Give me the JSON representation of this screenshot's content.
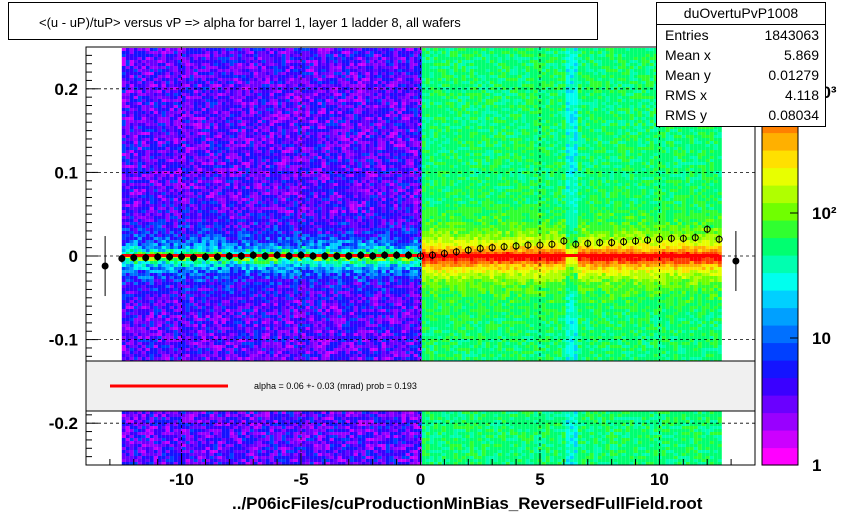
{
  "chart_data": {
    "type": "heatmap",
    "title": "<(u - uP)/tuP> versus   vP => alpha for barrel 1, layer 1 ladder 8, all wafers",
    "xlabel": "../P06icFiles/cuProductionMinBias_ReversedFullField.root",
    "ylabel": "",
    "xlim": [
      -14,
      14
    ],
    "ylim": [
      -0.25,
      0.25
    ],
    "x_ticks": [
      -10,
      -5,
      0,
      5,
      10
    ],
    "x_tick_labels": [
      "-10",
      "-5",
      "0",
      "5",
      "10"
    ],
    "y_ticks": [
      0.2,
      0.1,
      0,
      -0.1,
      -0.2
    ],
    "y_tick_labels": [
      "0.2",
      "0.1",
      "0",
      "-0.1",
      "-0.2"
    ],
    "grid": true,
    "z_scale": "log",
    "colorbar_tick_labels": [
      "1",
      "10",
      "10²",
      "10³"
    ],
    "profile_points": {
      "x": [
        -13.2,
        -12.5,
        -12.0,
        -11.5,
        -11.0,
        -10.5,
        -10.0,
        -9.5,
        -9.0,
        -8.5,
        -8.0,
        -7.5,
        -7.0,
        -6.5,
        -6.0,
        -5.5,
        -5.0,
        -4.5,
        -4.0,
        -3.5,
        -3.0,
        -2.5,
        -2.0,
        -1.5,
        -1.0,
        -0.5,
        0.0,
        0.5,
        1.0,
        1.5,
        2.0,
        2.5,
        3.0,
        3.5,
        4.0,
        4.5,
        5.0,
        5.5,
        6.0,
        6.5,
        7.0,
        7.5,
        8.0,
        8.5,
        9.0,
        9.5,
        10.0,
        10.5,
        11.0,
        11.5,
        12.0,
        12.5,
        13.2
      ],
      "y": [
        -0.012,
        -0.003,
        -0.002,
        -0.002,
        -0.001,
        -0.001,
        -0.001,
        -0.002,
        -0.001,
        -0.001,
        0.0,
        0.0,
        0.001,
        0.0,
        0.001,
        0.0,
        0.001,
        0.0,
        0.0,
        0.0,
        0.0,
        0.001,
        0.0,
        0.001,
        0.001,
        0.001,
        0.0,
        0.001,
        0.003,
        0.005,
        0.007,
        0.009,
        0.01,
        0.011,
        0.012,
        0.013,
        0.013,
        0.014,
        0.018,
        0.014,
        0.015,
        0.016,
        0.016,
        0.017,
        0.018,
        0.019,
        0.02,
        0.021,
        0.021,
        0.022,
        0.032,
        0.02,
        -0.006
      ]
    },
    "fit_line": {
      "y": 0.0006,
      "color": "#ff0000"
    },
    "legend": {
      "entries": [
        "alpha =    0.06 +-  0.03 (mrad) prob = 0.193"
      ],
      "position": "bottom"
    },
    "stats": {
      "name": "duOvertuPvP1008",
      "rows": [
        {
          "key": "Entries",
          "value": "1843063"
        },
        {
          "key": "Mean x",
          "value": "5.869"
        },
        {
          "key": "Mean y",
          "value": "0.01279"
        },
        {
          "key": "RMS x",
          "value": "4.118"
        },
        {
          "key": "RMS y",
          "value": "0.08034"
        }
      ]
    }
  }
}
